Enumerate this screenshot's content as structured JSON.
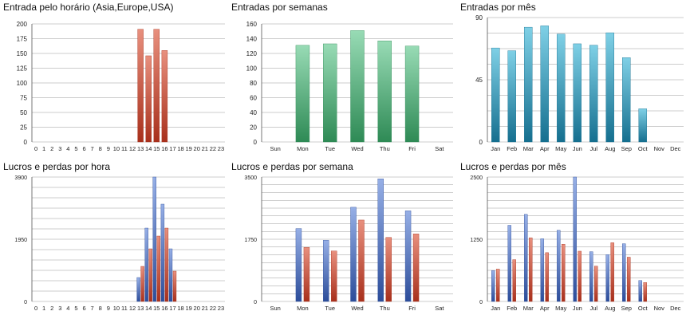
{
  "colors": {
    "red_top": "#e8907e",
    "red_bottom": "#a8301c",
    "green_top": "#98dbb5",
    "green_bottom": "#2e8a55",
    "teal_top": "#7fd0e6",
    "teal_bottom": "#156f8f",
    "blue_top": "#96afe6",
    "blue_bottom": "#2c4d9a",
    "grid": "#9a9a9a",
    "axis": "#555555",
    "text": "#222222"
  },
  "chart_data": [
    {
      "type": "bar",
      "title": "Entrada pelo horário (Asia,Europe,USA)",
      "categories": [
        "0",
        "1",
        "2",
        "3",
        "4",
        "5",
        "6",
        "7",
        "8",
        "9",
        "10",
        "11",
        "12",
        "13",
        "14",
        "15",
        "16",
        "17",
        "18",
        "19",
        "20",
        "21",
        "22",
        "23"
      ],
      "series": [
        {
          "values": [
            0,
            0,
            0,
            0,
            0,
            0,
            0,
            0,
            0,
            0,
            0,
            0,
            0,
            191,
            146,
            191,
            155,
            0,
            0,
            0,
            0,
            0,
            0,
            0
          ]
        }
      ],
      "yticks": [
        "0",
        "25",
        "50",
        "75",
        "100",
        "125",
        "150",
        "175",
        "200"
      ],
      "ylim": [
        0,
        200
      ],
      "grid": true,
      "xlabel": "",
      "ylabel": ""
    },
    {
      "type": "bar",
      "title": "Entradas por semanas",
      "categories": [
        "Sun",
        "Mon",
        "Tue",
        "Wed",
        "Thu",
        "Fri",
        "Sat"
      ],
      "series": [
        {
          "values": [
            0,
            131,
            133,
            151,
            137,
            130,
            0
          ]
        }
      ],
      "yticks": [
        "0",
        "20",
        "40",
        "60",
        "80",
        "100",
        "120",
        "140",
        "160"
      ],
      "ylim": [
        0,
        160
      ],
      "grid": true,
      "xlabel": "",
      "ylabel": ""
    },
    {
      "type": "bar",
      "title": "Entradas por mês",
      "categories": [
        "Jan",
        "Feb",
        "Mar",
        "Apr",
        "May",
        "Jun",
        "Jul",
        "Aug",
        "Sep",
        "Oct",
        "Nov",
        "Dec"
      ],
      "series": [
        {
          "values": [
            68,
            66,
            83,
            84,
            78,
            71,
            70,
            79,
            61,
            24,
            0,
            0
          ]
        }
      ],
      "yticks": [
        "0",
        "45",
        "90"
      ],
      "ylim": [
        0,
        90
      ],
      "grid": true,
      "xlabel": "",
      "ylabel": ""
    },
    {
      "type": "bar",
      "title": "Lucros e perdas por hora",
      "categories": [
        "0",
        "1",
        "2",
        "3",
        "4",
        "5",
        "6",
        "7",
        "8",
        "9",
        "10",
        "11",
        "12",
        "13",
        "14",
        "15",
        "16",
        "17",
        "18",
        "19",
        "20",
        "21",
        "22",
        "23"
      ],
      "series": [
        {
          "values": [
            0,
            0,
            0,
            0,
            0,
            0,
            0,
            0,
            0,
            0,
            0,
            0,
            0,
            750,
            2300,
            3900,
            3050,
            1650,
            0,
            0,
            0,
            0,
            0,
            0
          ]
        },
        {
          "values": [
            0,
            0,
            0,
            0,
            0,
            0,
            0,
            0,
            0,
            0,
            0,
            0,
            0,
            1100,
            1650,
            2050,
            2300,
            950,
            0,
            0,
            0,
            0,
            0,
            0
          ]
        }
      ],
      "yticks": [
        "0",
        "1950",
        "3900"
      ],
      "ylim": [
        0,
        3900
      ],
      "grid": true,
      "xlabel": "",
      "ylabel": ""
    },
    {
      "type": "bar",
      "title": "Lucros e perdas por semana",
      "categories": [
        "Sun",
        "Mon",
        "Tue",
        "Wed",
        "Thu",
        "Fri",
        "Sat"
      ],
      "series": [
        {
          "values": [
            0,
            2050,
            1720,
            2650,
            3450,
            2550,
            0
          ]
        },
        {
          "values": [
            0,
            1520,
            1420,
            2290,
            1800,
            1900,
            0
          ]
        }
      ],
      "yticks": [
        "0",
        "1750",
        "3500"
      ],
      "ylim": [
        0,
        3500
      ],
      "grid": true,
      "xlabel": "",
      "ylabel": ""
    },
    {
      "type": "bar",
      "title": "Lucros e perdas por mês",
      "categories": [
        "Jan",
        "Feb",
        "Mar",
        "Apr",
        "May",
        "Jun",
        "Jul",
        "Aug",
        "Sep",
        "Oct",
        "Nov",
        "Dec"
      ],
      "series": [
        {
          "values": [
            620,
            1530,
            1750,
            1260,
            1430,
            2500,
            1000,
            940,
            1160,
            420,
            0,
            0
          ]
        },
        {
          "values": [
            650,
            840,
            1280,
            980,
            1150,
            1010,
            710,
            1180,
            890,
            380,
            0,
            0
          ]
        }
      ],
      "yticks": [
        "0",
        "1250",
        "2500"
      ],
      "ylim": [
        0,
        2500
      ],
      "grid": true,
      "xlabel": "",
      "ylabel": ""
    }
  ]
}
